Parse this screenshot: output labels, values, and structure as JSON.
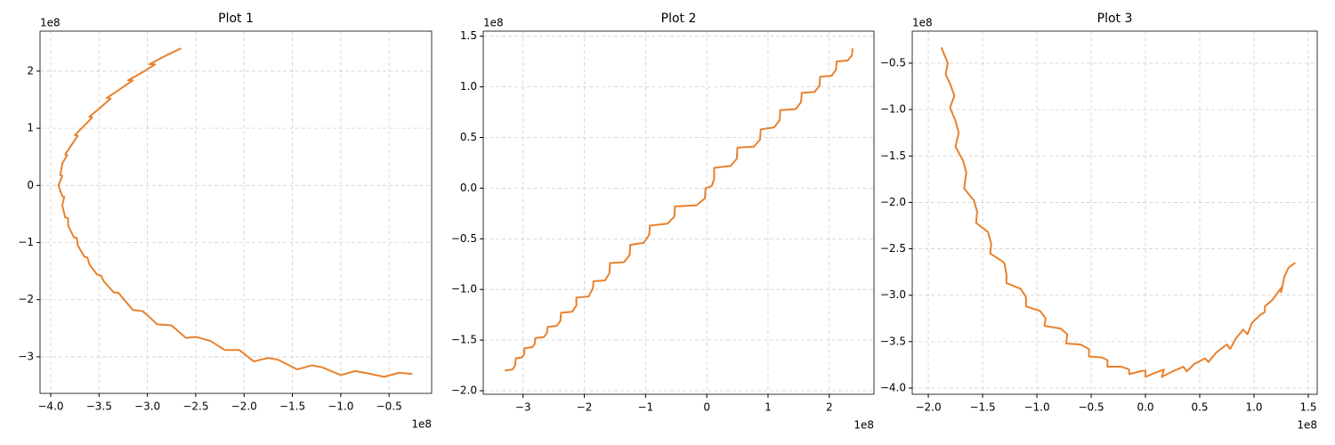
{
  "chart_data": [
    {
      "type": "line",
      "title": "Plot 1",
      "color": "#e8812d",
      "grid": true,
      "x_offset": "1e8",
      "y_offset": "1e8",
      "xlim": [
        -4.11,
        -0.06
      ],
      "ylim": [
        -3.64,
        2.7
      ],
      "xticks": [
        {
          "value": -4.0,
          "label": "−4.0"
        },
        {
          "value": -3.5,
          "label": "−3.5"
        },
        {
          "value": -3.0,
          "label": "−3.0"
        },
        {
          "value": -2.5,
          "label": "−2.5"
        },
        {
          "value": -2.0,
          "label": "−2.0"
        },
        {
          "value": -1.5,
          "label": "−1.5"
        },
        {
          "value": -1.0,
          "label": "−1.0"
        },
        {
          "value": -0.5,
          "label": "−0.5"
        }
      ],
      "yticks": [
        {
          "value": -3,
          "label": "−3"
        },
        {
          "value": -2,
          "label": "−2"
        },
        {
          "value": -1,
          "label": "−1"
        },
        0,
        1,
        2
      ],
      "x": [
        -0.26,
        -0.4,
        -0.55,
        -0.75,
        -0.85,
        -1.0,
        -1.2,
        -1.3,
        -1.45,
        -1.65,
        -1.75,
        -1.9,
        -2.05,
        -2.2,
        -2.35,
        -2.5,
        -2.6,
        -2.75,
        -2.9,
        -3.0,
        -3.05,
        -3.15,
        -3.25,
        -3.3,
        -3.35,
        -3.45,
        -3.48,
        -3.52,
        -3.6,
        -3.62,
        -3.65,
        -3.72,
        -3.73,
        -3.76,
        -3.82,
        -3.82,
        -3.85,
        -3.88,
        -3.86,
        -3.88,
        -3.92,
        -3.88,
        -3.9,
        -3.88,
        -3.83,
        -3.85,
        -3.78,
        -3.72,
        -3.75,
        -3.65,
        -3.57,
        -3.6,
        -3.48,
        -3.38,
        -3.42,
        -3.27,
        -3.15,
        -3.2,
        -3.03,
        -2.92,
        -2.98,
        -2.8,
        -2.65
      ],
      "values": [
        -3.3,
        -3.28,
        -3.35,
        -3.28,
        -3.25,
        -3.32,
        -3.18,
        -3.15,
        -3.22,
        -3.05,
        -3.02,
        -3.08,
        -2.88,
        -2.88,
        -2.72,
        -2.65,
        -2.67,
        -2.45,
        -2.43,
        -2.27,
        -2.2,
        -2.18,
        -1.98,
        -1.88,
        -1.87,
        -1.68,
        -1.58,
        -1.56,
        -1.38,
        -1.26,
        -1.25,
        -1.05,
        -0.92,
        -0.91,
        -0.7,
        -0.57,
        -0.56,
        -0.35,
        -0.2,
        -0.19,
        0.0,
        0.17,
        0.18,
        0.38,
        0.53,
        0.54,
        0.72,
        0.87,
        0.88,
        1.05,
        1.19,
        1.2,
        1.37,
        1.52,
        1.53,
        1.7,
        1.84,
        1.84,
        2.0,
        2.12,
        2.12,
        2.28,
        2.4
      ]
    },
    {
      "type": "line",
      "title": "Plot 2",
      "color": "#e8812d",
      "grid": true,
      "x_offset": "1e8",
      "y_offset": "1e8",
      "xlim": [
        -3.65,
        2.73
      ],
      "ylim": [
        -2.035,
        1.55
      ],
      "xticks": [
        {
          "value": -3,
          "label": "−3"
        },
        {
          "value": -2,
          "label": "−2"
        },
        {
          "value": -1,
          "label": "−1"
        },
        0,
        1,
        2
      ],
      "yticks": [
        {
          "value": -2.0,
          "label": "−2.0"
        },
        {
          "value": -1.5,
          "label": "−1.5"
        },
        {
          "value": -1.0,
          "label": "−1.0"
        },
        {
          "value": -0.5,
          "label": "−0.5"
        },
        {
          "value": 0.0,
          "label": "0.0"
        },
        {
          "value": 0.5,
          "label": "0.5"
        },
        {
          "value": 1.0,
          "label": "1.0"
        },
        {
          "value": 1.5,
          "label": "1.5"
        }
      ],
      "x": [
        -3.3,
        -3.17,
        -3.13,
        -3.12,
        -3.02,
        -2.98,
        -2.98,
        -2.85,
        -2.81,
        -2.8,
        -2.66,
        -2.61,
        -2.6,
        -2.45,
        -2.39,
        -2.38,
        -2.2,
        -2.13,
        -2.13,
        -1.93,
        -1.86,
        -1.85,
        -1.66,
        -1.59,
        -1.58,
        -1.35,
        -1.26,
        -1.25,
        -1.03,
        -0.94,
        -0.93,
        -0.64,
        -0.53,
        -0.52,
        -0.17,
        -0.03,
        -0.02,
        0.08,
        0.12,
        0.12,
        0.39,
        0.49,
        0.5,
        0.77,
        0.87,
        0.88,
        1.1,
        1.19,
        1.2,
        1.45,
        1.54,
        1.55,
        1.76,
        1.84,
        1.85,
        2.04,
        2.11,
        2.12,
        2.3,
        2.37,
        2.38
      ],
      "values": [
        -1.8,
        -1.79,
        -1.75,
        -1.68,
        -1.67,
        -1.64,
        -1.58,
        -1.57,
        -1.54,
        -1.48,
        -1.47,
        -1.43,
        -1.37,
        -1.36,
        -1.31,
        -1.23,
        -1.22,
        -1.16,
        -1.08,
        -1.07,
        -0.99,
        -0.92,
        -0.91,
        -0.84,
        -0.74,
        -0.73,
        -0.66,
        -0.56,
        -0.54,
        -0.46,
        -0.37,
        -0.35,
        -0.28,
        -0.18,
        -0.17,
        -0.1,
        0.0,
        0.02,
        0.09,
        0.2,
        0.22,
        0.29,
        0.4,
        0.41,
        0.48,
        0.58,
        0.6,
        0.67,
        0.77,
        0.78,
        0.85,
        0.94,
        0.95,
        1.01,
        1.1,
        1.11,
        1.17,
        1.25,
        1.26,
        1.31,
        1.38
      ]
    },
    {
      "type": "line",
      "title": "Plot 3",
      "color": "#e8812d",
      "grid": true,
      "x_offset": "1e8",
      "y_offset": "1e8",
      "xlim": [
        -2.148,
        1.582
      ],
      "ylim": [
        -4.067,
        -0.155
      ],
      "xticks": [
        {
          "value": -2.0,
          "label": "−2.0"
        },
        {
          "value": -1.5,
          "label": "−1.5"
        },
        {
          "value": -1.0,
          "label": "−1.0"
        },
        {
          "value": -0.5,
          "label": "−0.5"
        },
        {
          "value": 0.0,
          "label": "0.0"
        },
        {
          "value": 0.5,
          "label": "0.5"
        },
        {
          "value": 1.0,
          "label": "1.0"
        },
        {
          "value": 1.5,
          "label": "1.5"
        }
      ],
      "yticks": [
        {
          "value": -4.0,
          "label": "−4.0"
        },
        {
          "value": -3.5,
          "label": "−3.5"
        },
        {
          "value": -3.0,
          "label": "−3.0"
        },
        {
          "value": -2.5,
          "label": "−2.5"
        },
        {
          "value": -2.0,
          "label": "−2.0"
        },
        {
          "value": -1.5,
          "label": "−1.5"
        },
        {
          "value": -1.0,
          "label": "−1.0"
        },
        {
          "value": -0.5,
          "label": "−0.5"
        }
      ],
      "x": [
        -1.88,
        -1.82,
        -1.84,
        -1.8,
        -1.76,
        -1.8,
        -1.75,
        -1.72,
        -1.75,
        -1.68,
        -1.65,
        -1.67,
        -1.58,
        -1.55,
        -1.56,
        -1.45,
        -1.42,
        -1.43,
        -1.3,
        -1.28,
        -1.28,
        -1.15,
        -1.1,
        -1.1,
        -0.97,
        -0.92,
        -0.93,
        -0.78,
        -0.72,
        -0.73,
        -0.6,
        -0.52,
        -0.52,
        -0.4,
        -0.35,
        -0.35,
        -0.22,
        -0.15,
        -0.15,
        -0.05,
        0.0,
        0.0,
        0.08,
        0.17,
        0.15,
        0.25,
        0.35,
        0.38,
        0.45,
        0.55,
        0.58,
        0.65,
        0.75,
        0.78,
        0.83,
        0.9,
        0.94,
        0.98,
        1.05,
        1.1,
        1.1,
        1.17,
        1.22,
        1.25,
        1.25,
        1.28,
        1.32,
        1.38
      ],
      "values": [
        -0.33,
        -0.5,
        -0.62,
        -0.72,
        -0.85,
        -0.98,
        -1.12,
        -1.25,
        -1.4,
        -1.55,
        -1.68,
        -1.85,
        -1.98,
        -2.1,
        -2.22,
        -2.32,
        -2.45,
        -2.55,
        -2.65,
        -2.78,
        -2.87,
        -2.93,
        -3.02,
        -3.12,
        -3.17,
        -3.25,
        -3.33,
        -3.36,
        -3.42,
        -3.52,
        -3.53,
        -3.58,
        -3.66,
        -3.67,
        -3.7,
        -3.77,
        -3.77,
        -3.8,
        -3.85,
        -3.82,
        -3.81,
        -3.88,
        -3.84,
        -3.8,
        -3.88,
        -3.82,
        -3.77,
        -3.82,
        -3.74,
        -3.68,
        -3.72,
        -3.62,
        -3.53,
        -3.58,
        -3.47,
        -3.37,
        -3.42,
        -3.3,
        -3.22,
        -3.18,
        -3.12,
        -3.05,
        -2.97,
        -2.92,
        -2.97,
        -2.8,
        -2.7,
        -2.65
      ]
    }
  ]
}
